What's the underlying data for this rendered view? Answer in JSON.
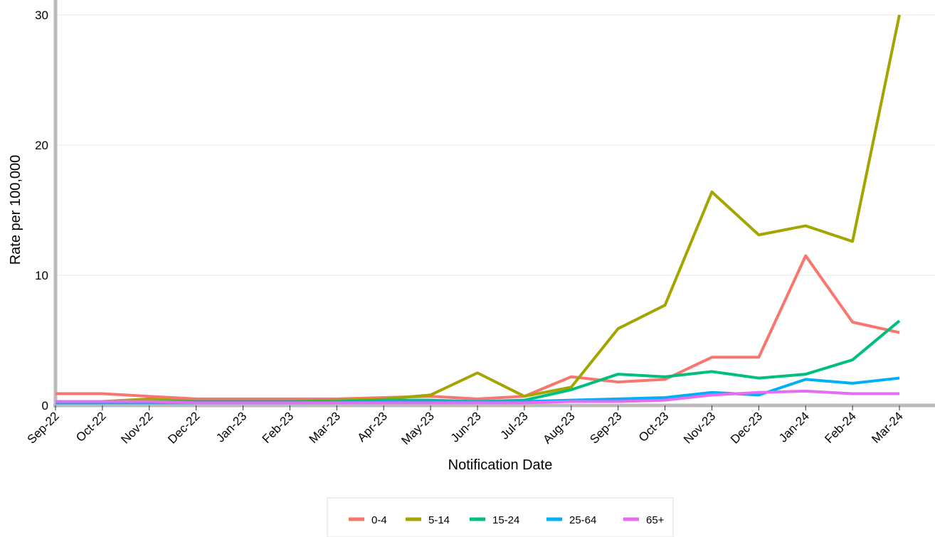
{
  "chart_data": {
    "type": "line",
    "x_label": "Notification Date",
    "y_label": "Rate per 100,000",
    "categories": [
      "Sep-22",
      "Oct-22",
      "Nov-22",
      "Dec-22",
      "Jan-23",
      "Feb-23",
      "Mar-23",
      "Apr-23",
      "May-23",
      "Jun-23",
      "Jul-23",
      "Aug-23",
      "Sep-23",
      "Oct-23",
      "Nov-23",
      "Dec-23",
      "Jan-24",
      "Feb-24",
      "Mar-24"
    ],
    "series": [
      {
        "name": "0-4",
        "color": "#f8766d",
        "values": [
          0.9,
          0.9,
          0.7,
          0.5,
          0.5,
          0.5,
          0.5,
          0.6,
          0.7,
          0.5,
          0.7,
          2.2,
          1.8,
          2.0,
          3.7,
          3.7,
          11.5,
          6.4,
          5.6
        ]
      },
      {
        "name": "5-14",
        "color": "#a3a500",
        "values": [
          0.3,
          0.3,
          0.5,
          0.3,
          0.3,
          0.3,
          0.4,
          0.5,
          0.8,
          2.5,
          0.7,
          1.4,
          5.9,
          7.7,
          16.4,
          13.1,
          13.8,
          12.6,
          30
        ]
      },
      {
        "name": "15-24",
        "color": "#00bf7d",
        "values": [
          0.2,
          0.2,
          0.3,
          0.3,
          0.3,
          0.3,
          0.3,
          0.4,
          0.4,
          0.3,
          0.4,
          1.2,
          2.4,
          2.2,
          2.6,
          2.1,
          2.4,
          3.5,
          6.5
        ]
      },
      {
        "name": "25-64",
        "color": "#00b0f6",
        "values": [
          0.2,
          0.2,
          0.2,
          0.2,
          0.2,
          0.2,
          0.2,
          0.3,
          0.3,
          0.3,
          0.3,
          0.4,
          0.5,
          0.6,
          1.0,
          0.8,
          2.0,
          1.7,
          2.1
        ]
      },
      {
        "name": "65+",
        "color": "#e76bf3",
        "values": [
          0.3,
          0.3,
          0.3,
          0.2,
          0.2,
          0.2,
          0.2,
          0.2,
          0.2,
          0.2,
          0.2,
          0.3,
          0.3,
          0.4,
          0.8,
          1.0,
          1.1,
          0.9,
          0.9
        ]
      }
    ],
    "ylim": [
      0,
      30
    ],
    "yticks": [
      0,
      10,
      20,
      30
    ],
    "grid": true,
    "legend": "bottom"
  }
}
